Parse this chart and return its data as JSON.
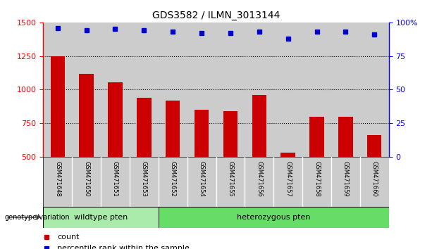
{
  "title": "GDS3582 / ILMN_3013144",
  "categories": [
    "GSM471648",
    "GSM471650",
    "GSM471651",
    "GSM471653",
    "GSM471652",
    "GSM471654",
    "GSM471655",
    "GSM471656",
    "GSM471657",
    "GSM471658",
    "GSM471659",
    "GSM471660"
  ],
  "bar_values": [
    1250,
    1115,
    1055,
    940,
    920,
    850,
    840,
    960,
    530,
    800,
    800,
    660
  ],
  "percentile_values": [
    96,
    94,
    95,
    94,
    93,
    92,
    92,
    93,
    88,
    93,
    93,
    91
  ],
  "bar_color": "#cc0000",
  "dot_color": "#0000cc",
  "ylim_left": [
    500,
    1500
  ],
  "ylim_right": [
    0,
    100
  ],
  "yticks_left": [
    500,
    750,
    1000,
    1250,
    1500
  ],
  "yticks_right": [
    0,
    25,
    50,
    75,
    100
  ],
  "ytick_right_labels": [
    "0",
    "25",
    "50",
    "75",
    "100%"
  ],
  "wildtype_label": "wildtype pten",
  "heterozygous_label": "heterozygous pten",
  "genotype_label": "genotype/variation",
  "legend_count": "count",
  "legend_percentile": "percentile rank within the sample",
  "wildtype_color": "#aaeaaa",
  "heterozygous_color": "#66dd66",
  "bar_bg_color": "#cccccc",
  "title_fontsize": 10,
  "n_wildtype": 4,
  "n_heterozygous": 8
}
